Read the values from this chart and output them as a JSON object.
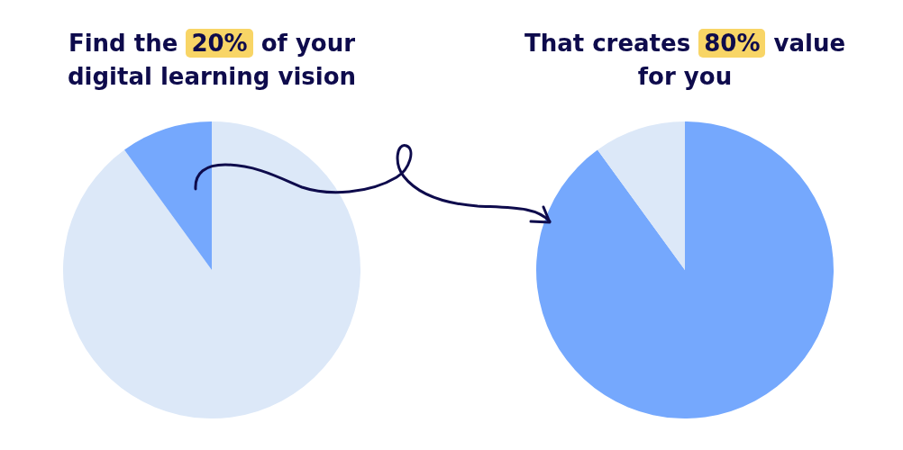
{
  "chart_data": [
    {
      "type": "pie",
      "title": "Find the 20% of your digital learning vision",
      "categories": [
        null,
        null
      ],
      "values": [
        90,
        10
      ],
      "colors": [
        "#dce8f8",
        "#75a8fd"
      ]
    },
    {
      "type": "pie",
      "title": "That creates 80% value for you",
      "categories": [
        null,
        null
      ],
      "values": [
        90,
        10
      ],
      "colors": [
        "#75a8fd",
        "#dce8f8"
      ]
    }
  ]
}
